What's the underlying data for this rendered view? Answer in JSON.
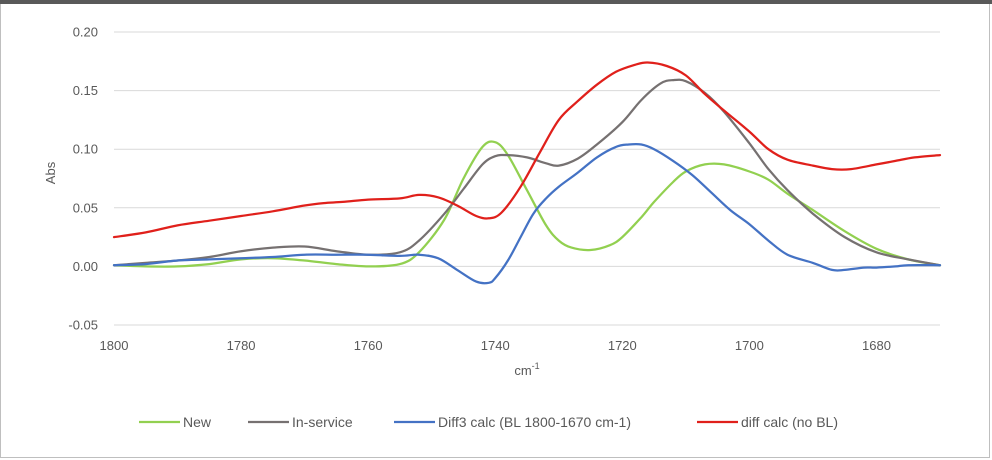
{
  "chart_data": {
    "type": "line",
    "title": "",
    "xlabel": "cm-1",
    "xlabel_base": "cm",
    "xlabel_sup": "-1",
    "ylabel": "Abs",
    "xlim": [
      1800,
      1670
    ],
    "x_reversed": true,
    "ylim": [
      -0.05,
      0.2
    ],
    "grid": true,
    "legend_position": "bottom",
    "x_ticks": [
      1800,
      1780,
      1760,
      1740,
      1720,
      1700,
      1680
    ],
    "x_tick_labels": [
      "1800",
      "1780",
      "1760",
      "1740",
      "1720",
      "1700",
      "1680"
    ],
    "y_ticks": [
      -0.05,
      0,
      0.05,
      0.1,
      0.15,
      0.2
    ],
    "y_tick_labels": [
      "-0.05",
      "0.00",
      "0.05",
      "0.10",
      "0.15",
      "0.20"
    ],
    "series": [
      {
        "name": "New",
        "color": "#92d050",
        "x": [
          1800,
          1795,
          1790,
          1785,
          1780,
          1775,
          1770,
          1765,
          1760,
          1755,
          1752,
          1748,
          1745,
          1742,
          1740,
          1738,
          1735,
          1732,
          1730,
          1728,
          1725,
          1722,
          1720,
          1717,
          1715,
          1712,
          1710,
          1707,
          1704,
          1700,
          1697,
          1694,
          1690,
          1685,
          1680,
          1675,
          1670
        ],
        "y": [
          0.001,
          0.0,
          0.0,
          0.002,
          0.006,
          0.007,
          0.005,
          0.002,
          0.0,
          0.002,
          0.012,
          0.04,
          0.075,
          0.102,
          0.106,
          0.095,
          0.065,
          0.035,
          0.022,
          0.016,
          0.014,
          0.018,
          0.025,
          0.042,
          0.055,
          0.072,
          0.081,
          0.087,
          0.087,
          0.081,
          0.074,
          0.062,
          0.048,
          0.03,
          0.015,
          0.006,
          0.001
        ]
      },
      {
        "name": "In-service",
        "color": "#767171",
        "x": [
          1800,
          1795,
          1790,
          1785,
          1780,
          1775,
          1770,
          1765,
          1760,
          1755,
          1752,
          1748,
          1745,
          1742,
          1740,
          1738,
          1735,
          1732,
          1730,
          1727,
          1724,
          1720,
          1717,
          1714,
          1712,
          1710,
          1707,
          1704,
          1700,
          1697,
          1694,
          1690,
          1685,
          1680,
          1675,
          1670
        ],
        "y": [
          0.001,
          0.003,
          0.005,
          0.008,
          0.013,
          0.016,
          0.017,
          0.013,
          0.01,
          0.012,
          0.022,
          0.045,
          0.066,
          0.087,
          0.094,
          0.095,
          0.093,
          0.088,
          0.086,
          0.092,
          0.104,
          0.123,
          0.142,
          0.156,
          0.159,
          0.158,
          0.148,
          0.132,
          0.105,
          0.083,
          0.065,
          0.045,
          0.025,
          0.012,
          0.006,
          0.001
        ]
      },
      {
        "name": "Diff3 calc (BL 1800-1670 cm-1)",
        "color": "#4472c4",
        "x": [
          1800,
          1795,
          1790,
          1785,
          1780,
          1775,
          1770,
          1765,
          1760,
          1755,
          1752,
          1749,
          1746,
          1743,
          1741,
          1740,
          1738,
          1736,
          1734,
          1732,
          1730,
          1727,
          1724,
          1721,
          1719,
          1717,
          1715,
          1712,
          1709,
          1706,
          1703,
          1700,
          1697,
          1694,
          1690,
          1687,
          1685,
          1682,
          1680,
          1677,
          1675,
          1670
        ],
        "y": [
          0.001,
          0.002,
          0.005,
          0.006,
          0.007,
          0.008,
          0.01,
          0.01,
          0.01,
          0.009,
          0.01,
          0.007,
          -0.003,
          -0.013,
          -0.014,
          -0.01,
          0.005,
          0.025,
          0.045,
          0.058,
          0.068,
          0.08,
          0.093,
          0.102,
          0.104,
          0.104,
          0.1,
          0.09,
          0.078,
          0.063,
          0.048,
          0.036,
          0.022,
          0.01,
          0.003,
          -0.003,
          -0.003,
          -0.001,
          -0.001,
          0.0,
          0.001,
          0.001
        ]
      },
      {
        "name": "diff calc (no BL)",
        "color": "#e0201b",
        "x": [
          1800,
          1795,
          1790,
          1785,
          1780,
          1775,
          1770,
          1767,
          1764,
          1760,
          1755,
          1752,
          1749,
          1746,
          1743,
          1741,
          1739,
          1736,
          1733,
          1730,
          1727,
          1724,
          1721,
          1718,
          1716,
          1713,
          1710,
          1707,
          1704,
          1700,
          1697,
          1694,
          1690,
          1687,
          1684,
          1680,
          1677,
          1674,
          1670
        ],
        "y": [
          0.025,
          0.029,
          0.035,
          0.039,
          0.043,
          0.047,
          0.052,
          0.054,
          0.055,
          0.057,
          0.058,
          0.061,
          0.059,
          0.052,
          0.043,
          0.041,
          0.046,
          0.068,
          0.097,
          0.125,
          0.141,
          0.155,
          0.166,
          0.172,
          0.174,
          0.171,
          0.163,
          0.147,
          0.133,
          0.115,
          0.1,
          0.091,
          0.086,
          0.083,
          0.083,
          0.087,
          0.09,
          0.093,
          0.095
        ]
      }
    ]
  }
}
